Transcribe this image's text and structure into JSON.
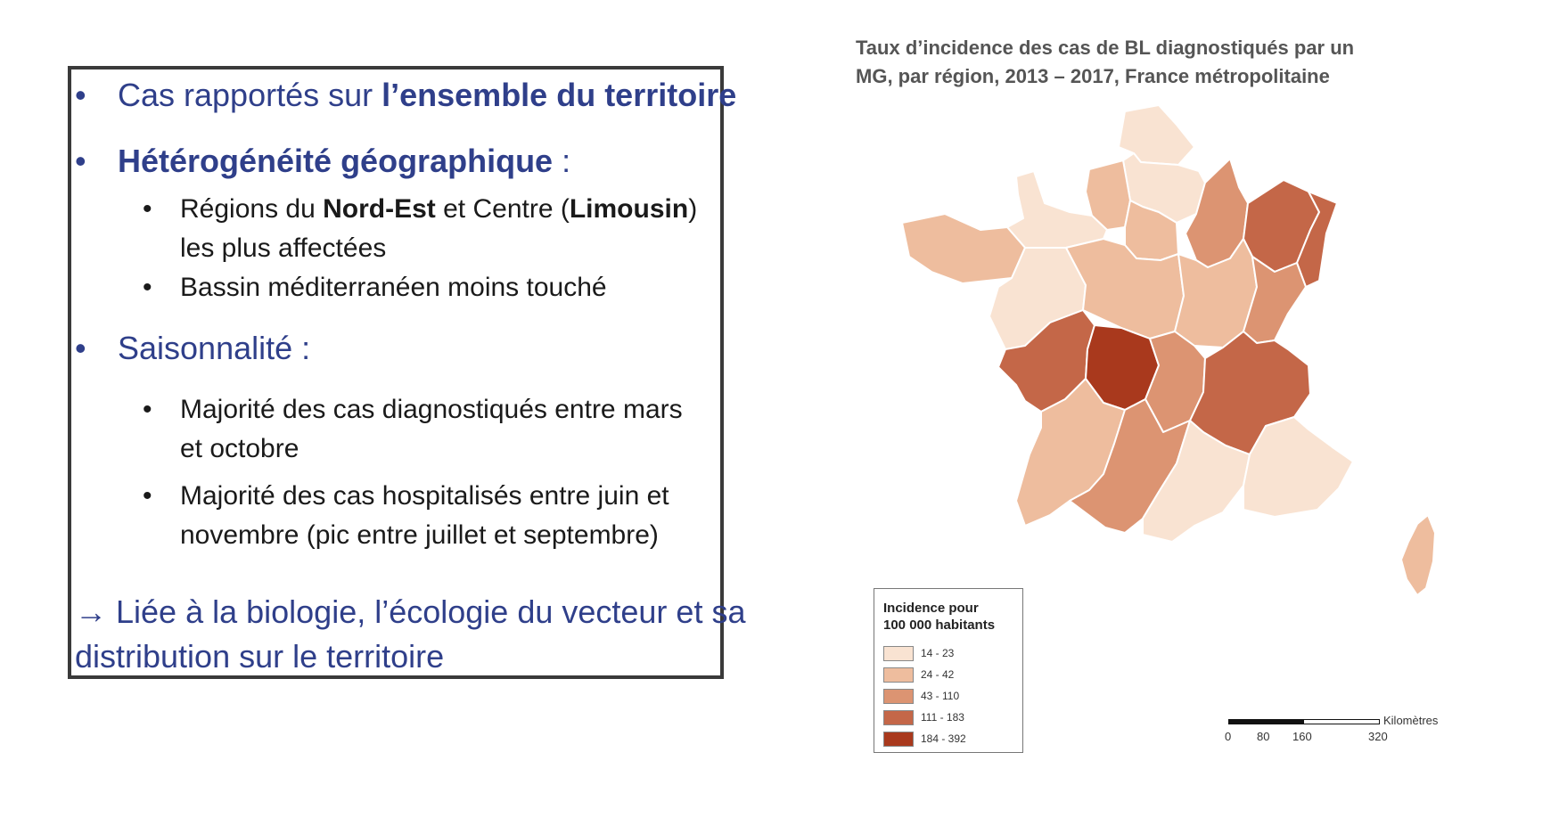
{
  "text": {
    "b1": {
      "bullet": "•",
      "pre": "Cas rapportés sur ",
      "bold": "l’ensemble du territoire"
    },
    "b2": {
      "bullet": "•",
      "bold": "Hétérogénéité géographique",
      "post": " :"
    },
    "b2a": {
      "bullet": "•",
      "pre": "Régions du ",
      "bold1": "Nord-Est",
      "mid": " et Centre (",
      "bold2": "Limousin",
      "post": ")",
      "line2": "les plus affectées"
    },
    "b2b": {
      "bullet": "•",
      "text": "Bassin méditerranéen moins touché"
    },
    "b3": {
      "bullet": "•",
      "text": "Saisonnalité :"
    },
    "b3a": {
      "bullet": "•",
      "line1": "Majorité des cas diagnostiqués entre mars",
      "line2": "et octobre"
    },
    "b3b": {
      "bullet": "•",
      "line1": "Majorité des cas hospitalisés entre juin et",
      "line2": "novembre (pic entre juillet et septembre)"
    },
    "conclusion": {
      "line1": "→ Liée à la biologie, l’écologie du vecteur et sa",
      "line2": "distribution sur le territoire"
    }
  },
  "map": {
    "title_line1": "Taux d’incidence des cas de BL diagnostiqués par un",
    "title_line2": "MG, par région, 2013 – 2017, France métropolitaine",
    "legend": {
      "title_line1": "Incidence pour",
      "title_line2": "100 000 habitants",
      "classes": [
        {
          "label": "14 - 23",
          "color": "#f9e3d2"
        },
        {
          "label": "24 - 42",
          "color": "#eebd9e"
        },
        {
          "label": "43 - 110",
          "color": "#dc9472"
        },
        {
          "label": "111 - 183",
          "color": "#c46748"
        },
        {
          "label": "184 - 392",
          "color": "#a9391d"
        }
      ]
    },
    "scale": {
      "unit": "Kilomètres",
      "ticks": [
        "0",
        "80",
        "160",
        "320"
      ]
    },
    "regions": [
      {
        "name": "Nord-Pas-de-Calais",
        "class": 0
      },
      {
        "name": "Picardie",
        "class": 0
      },
      {
        "name": "Haute-Normandie",
        "class": 1
      },
      {
        "name": "Basse-Normandie",
        "class": 0
      },
      {
        "name": "Bretagne",
        "class": 1
      },
      {
        "name": "Île-de-France",
        "class": 1
      },
      {
        "name": "Champagne-Ardenne",
        "class": 2
      },
      {
        "name": "Lorraine",
        "class": 3
      },
      {
        "name": "Alsace",
        "class": 3
      },
      {
        "name": "Pays de la Loire",
        "class": 0
      },
      {
        "name": "Centre",
        "class": 1
      },
      {
        "name": "Bourgogne",
        "class": 1
      },
      {
        "name": "Franche-Comté",
        "class": 2
      },
      {
        "name": "Poitou-Charentes",
        "class": 3
      },
      {
        "name": "Limousin",
        "class": 4
      },
      {
        "name": "Auvergne",
        "class": 2
      },
      {
        "name": "Rhône-Alpes",
        "class": 3
      },
      {
        "name": "Aquitaine",
        "class": 1
      },
      {
        "name": "Midi-Pyrénées",
        "class": 2
      },
      {
        "name": "Languedoc-Roussillon",
        "class": 0
      },
      {
        "name": "Provence-Alpes-Côte d’Azur",
        "class": 0
      },
      {
        "name": "Corse",
        "class": 1
      }
    ]
  }
}
